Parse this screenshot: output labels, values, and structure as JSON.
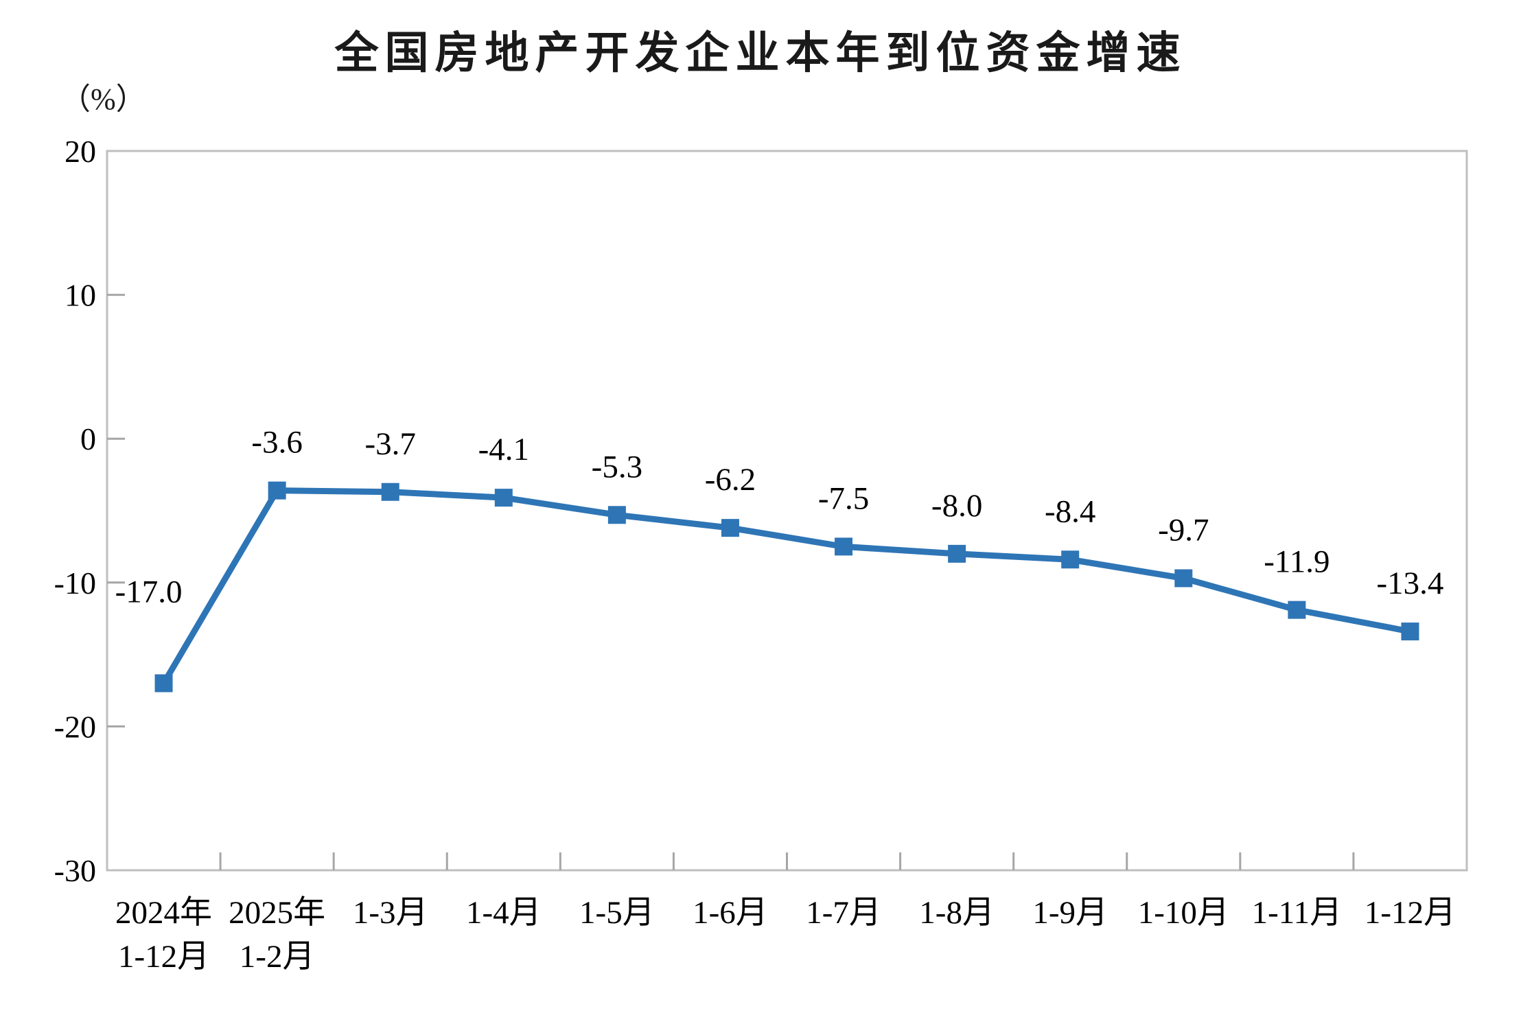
{
  "page": {
    "background": "#ffffff"
  },
  "chart_data": {
    "type": "line",
    "title": "全国房地产开发企业本年到位资金增速",
    "unit_label": "（%）",
    "categories": [
      "2024年\n1-12月",
      "2025年\n1-2月",
      "1-3月",
      "1-4月",
      "1-5月",
      "1-6月",
      "1-7月",
      "1-8月",
      "1-9月",
      "1-10月",
      "1-11月",
      "1-12月"
    ],
    "values": [
      -17.0,
      -3.6,
      -3.7,
      -4.1,
      -5.3,
      -6.2,
      -7.5,
      -8.0,
      -8.4,
      -9.7,
      -11.9,
      -13.4
    ],
    "value_labels": [
      "-17.0",
      "-3.6",
      "-3.7",
      "-4.1",
      "-5.3",
      "-6.2",
      "-7.5",
      "-8.0",
      "-8.4",
      "-9.7",
      "-11.9",
      "-13.4"
    ],
    "ylabel": "",
    "xlabel": "",
    "ylim": [
      -30,
      20
    ],
    "yticks": [
      20,
      10,
      0,
      -10,
      -20,
      -30
    ],
    "ytick_labels": [
      "20",
      "10",
      "0",
      "-10",
      "-20",
      "-30"
    ],
    "grid": "off",
    "legend": "none",
    "series_name": "本年到位资金增速",
    "line_color": "#2E75B6",
    "marker": "square",
    "marker_color": "#2E75B6",
    "text_color": "#000000",
    "border_color": "#BFBFBF",
    "tick_color": "#A6A6A6"
  }
}
